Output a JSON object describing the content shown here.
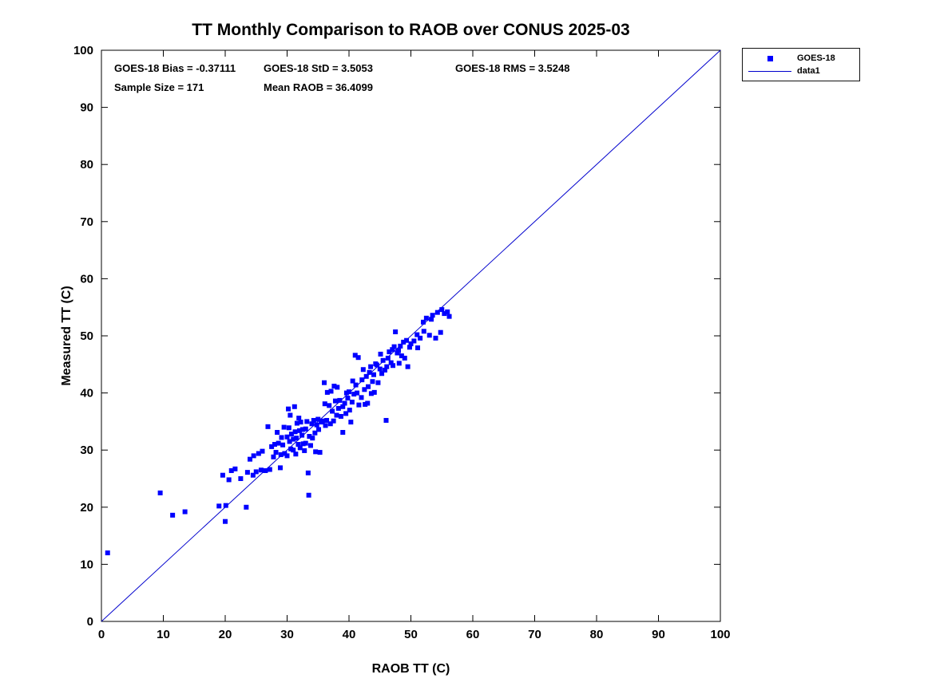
{
  "title": "TT Monthly Comparison to RAOB over CONUS 2025-03",
  "annotations": {
    "bias": "GOES-18 Bias = -0.37111",
    "std": "GOES-18 StD = 3.5053",
    "rms": "GOES-18 RMS = 3.5248",
    "sample": "Sample Size = 171",
    "mean_raob": "Mean RAOB = 36.4099"
  },
  "legend": {
    "items": [
      {
        "label": "GOES-18",
        "type": "marker"
      },
      {
        "label": "data1",
        "type": "line"
      }
    ]
  },
  "colors": {
    "marker": "#0000ff",
    "line": "#0000cd",
    "axis": "#000000"
  },
  "chart_data": {
    "type": "scatter",
    "title": "TT Monthly Comparison to RAOB over CONUS 2025-03",
    "xlabel": "RAOB TT (C)",
    "ylabel": "Measured TT (C)",
    "xlim": [
      0,
      100
    ],
    "ylim": [
      0,
      100
    ],
    "xticks": [
      0,
      10,
      20,
      30,
      40,
      50,
      60,
      70,
      80,
      90,
      100
    ],
    "yticks": [
      0,
      10,
      20,
      30,
      40,
      50,
      60,
      70,
      80,
      90,
      100
    ],
    "grid": false,
    "legend_position": "outside-top-right",
    "stats": {
      "bias": -0.37111,
      "std": 3.5053,
      "rms": 3.5248,
      "sample_size": 171,
      "mean_raob": 36.4099
    },
    "series": [
      {
        "name": "GOES-18",
        "type": "scatter",
        "marker": "square",
        "color": "#0000ff",
        "points": [
          [
            1,
            12
          ],
          [
            9.5,
            22.5
          ],
          [
            11.5,
            18.6
          ],
          [
            13.5,
            19.2
          ],
          [
            19,
            20.2
          ],
          [
            19.6,
            25.6
          ],
          [
            20,
            17.5
          ],
          [
            20.1,
            20.3
          ],
          [
            20.6,
            24.8
          ],
          [
            21,
            26.4
          ],
          [
            21.6,
            26.7
          ],
          [
            22.5,
            25
          ],
          [
            23.4,
            20
          ],
          [
            23.6,
            26.1
          ],
          [
            24,
            28.4
          ],
          [
            24.5,
            25.6
          ],
          [
            24.6,
            29
          ],
          [
            25,
            26.2
          ],
          [
            25.4,
            29.4
          ],
          [
            25.8,
            26.5
          ],
          [
            26,
            29.8
          ],
          [
            26.5,
            26.4
          ],
          [
            26.9,
            34.1
          ],
          [
            27.2,
            26.6
          ],
          [
            27.5,
            30.6
          ],
          [
            27.8,
            28.8
          ],
          [
            28,
            31
          ],
          [
            28.2,
            29.6
          ],
          [
            28.4,
            33.1
          ],
          [
            28.6,
            31.2
          ],
          [
            28.9,
            26.9
          ],
          [
            29,
            29.2
          ],
          [
            29.1,
            32.2
          ],
          [
            29.3,
            30.9
          ],
          [
            29.5,
            34
          ],
          [
            29.6,
            29.4
          ],
          [
            30,
            32.3
          ],
          [
            30,
            29
          ],
          [
            30.2,
            37.2
          ],
          [
            30.3,
            33.9
          ],
          [
            30.4,
            31.5
          ],
          [
            30.5,
            36.1
          ],
          [
            30.6,
            30.2
          ],
          [
            30.7,
            32.8
          ],
          [
            31,
            31.9
          ],
          [
            31,
            30
          ],
          [
            31.2,
            37.6
          ],
          [
            31.3,
            33.2
          ],
          [
            31.4,
            29.3
          ],
          [
            31.5,
            32.1
          ],
          [
            31.6,
            34.7
          ],
          [
            31.8,
            31
          ],
          [
            31.9,
            35.6
          ],
          [
            32,
            33.4
          ],
          [
            32.1,
            30.4
          ],
          [
            32.2,
            34.9
          ],
          [
            32.4,
            32.6
          ],
          [
            32.5,
            33.6
          ],
          [
            32.6,
            31.1
          ],
          [
            32.8,
            29.9
          ],
          [
            33,
            31.2
          ],
          [
            33,
            33.7
          ],
          [
            33.2,
            35
          ],
          [
            33.4,
            26
          ],
          [
            33.5,
            22.1
          ],
          [
            33.6,
            32.4
          ],
          [
            33.8,
            30.8
          ],
          [
            34,
            34.6
          ],
          [
            34.1,
            32.1
          ],
          [
            34.3,
            35.2
          ],
          [
            34.5,
            33
          ],
          [
            34.6,
            29.7
          ],
          [
            34.8,
            34.4
          ],
          [
            35,
            35.4
          ],
          [
            35.1,
            33.6
          ],
          [
            35.3,
            29.6
          ],
          [
            35.5,
            34.9
          ],
          [
            35.7,
            35.1
          ],
          [
            36,
            41.8
          ],
          [
            36.1,
            38.1
          ],
          [
            36.2,
            34.3
          ],
          [
            36.4,
            35.2
          ],
          [
            36.5,
            40.1
          ],
          [
            36.8,
            37.8
          ],
          [
            37,
            34.6
          ],
          [
            37.1,
            40.3
          ],
          [
            37.3,
            36.8
          ],
          [
            37.5,
            35.1
          ],
          [
            37.6,
            41.2
          ],
          [
            37.8,
            38.6
          ],
          [
            38,
            36.1
          ],
          [
            38.1,
            41
          ],
          [
            38.3,
            37.3
          ],
          [
            38.5,
            38.7
          ],
          [
            38.7,
            35.9
          ],
          [
            39,
            37.6
          ],
          [
            39,
            33.1
          ],
          [
            39.3,
            38.2
          ],
          [
            39.5,
            36.4
          ],
          [
            39.6,
            40
          ],
          [
            39.8,
            39.1
          ],
          [
            40,
            40.2
          ],
          [
            40.1,
            37
          ],
          [
            40.3,
            34.9
          ],
          [
            40.5,
            38.4
          ],
          [
            40.6,
            42.1
          ],
          [
            40.8,
            39.8
          ],
          [
            41,
            46.6
          ],
          [
            41.1,
            41.4
          ],
          [
            41.3,
            40
          ],
          [
            41.5,
            46.2
          ],
          [
            41.6,
            37.9
          ],
          [
            42,
            39.2
          ],
          [
            42.1,
            42.3
          ],
          [
            42.3,
            44.1
          ],
          [
            42.5,
            40.6
          ],
          [
            42.6,
            38
          ],
          [
            42.8,
            42.9
          ],
          [
            43,
            38.2
          ],
          [
            43.1,
            41.1
          ],
          [
            43.3,
            43.6
          ],
          [
            43.5,
            44.6
          ],
          [
            43.6,
            39.9
          ],
          [
            43.8,
            42
          ],
          [
            44,
            43.2
          ],
          [
            44.1,
            40.1
          ],
          [
            44.3,
            45.1
          ],
          [
            44.5,
            44.9
          ],
          [
            44.7,
            41.8
          ],
          [
            45,
            44.2
          ],
          [
            45.1,
            46.8
          ],
          [
            45.3,
            43.4
          ],
          [
            45.5,
            45.7
          ],
          [
            45.8,
            44
          ],
          [
            46,
            35.2
          ],
          [
            46.1,
            44.6
          ],
          [
            46.3,
            46.1
          ],
          [
            46.5,
            47.2
          ],
          [
            46.8,
            45.3
          ],
          [
            47,
            47.6
          ],
          [
            47.1,
            44.8
          ],
          [
            47.3,
            48.1
          ],
          [
            47.5,
            50.7
          ],
          [
            47.8,
            47
          ],
          [
            48,
            47.4
          ],
          [
            48.1,
            45.2
          ],
          [
            48.3,
            48.2
          ],
          [
            48.5,
            46.5
          ],
          [
            48.8,
            48.9
          ],
          [
            49,
            46.1
          ],
          [
            49.3,
            49.2
          ],
          [
            49.5,
            44.6
          ],
          [
            49.8,
            48
          ],
          [
            50,
            48.6
          ],
          [
            50.5,
            49.1
          ],
          [
            51,
            50.2
          ],
          [
            51.1,
            47.9
          ],
          [
            51.5,
            49.6
          ],
          [
            52,
            52.4
          ],
          [
            52.1,
            50.8
          ],
          [
            52.5,
            53.1
          ],
          [
            53,
            50.1
          ],
          [
            53.3,
            52.9
          ],
          [
            53.5,
            53.6
          ],
          [
            54,
            49.6
          ],
          [
            54.3,
            54.1
          ],
          [
            54.8,
            50.6
          ],
          [
            55,
            54.6
          ],
          [
            55.4,
            53.9
          ],
          [
            55.9,
            54.2
          ],
          [
            56.2,
            53.4
          ]
        ]
      },
      {
        "name": "data1",
        "type": "line",
        "color": "#0000cd",
        "points": [
          [
            0,
            0
          ],
          [
            100,
            100
          ]
        ]
      }
    ]
  }
}
